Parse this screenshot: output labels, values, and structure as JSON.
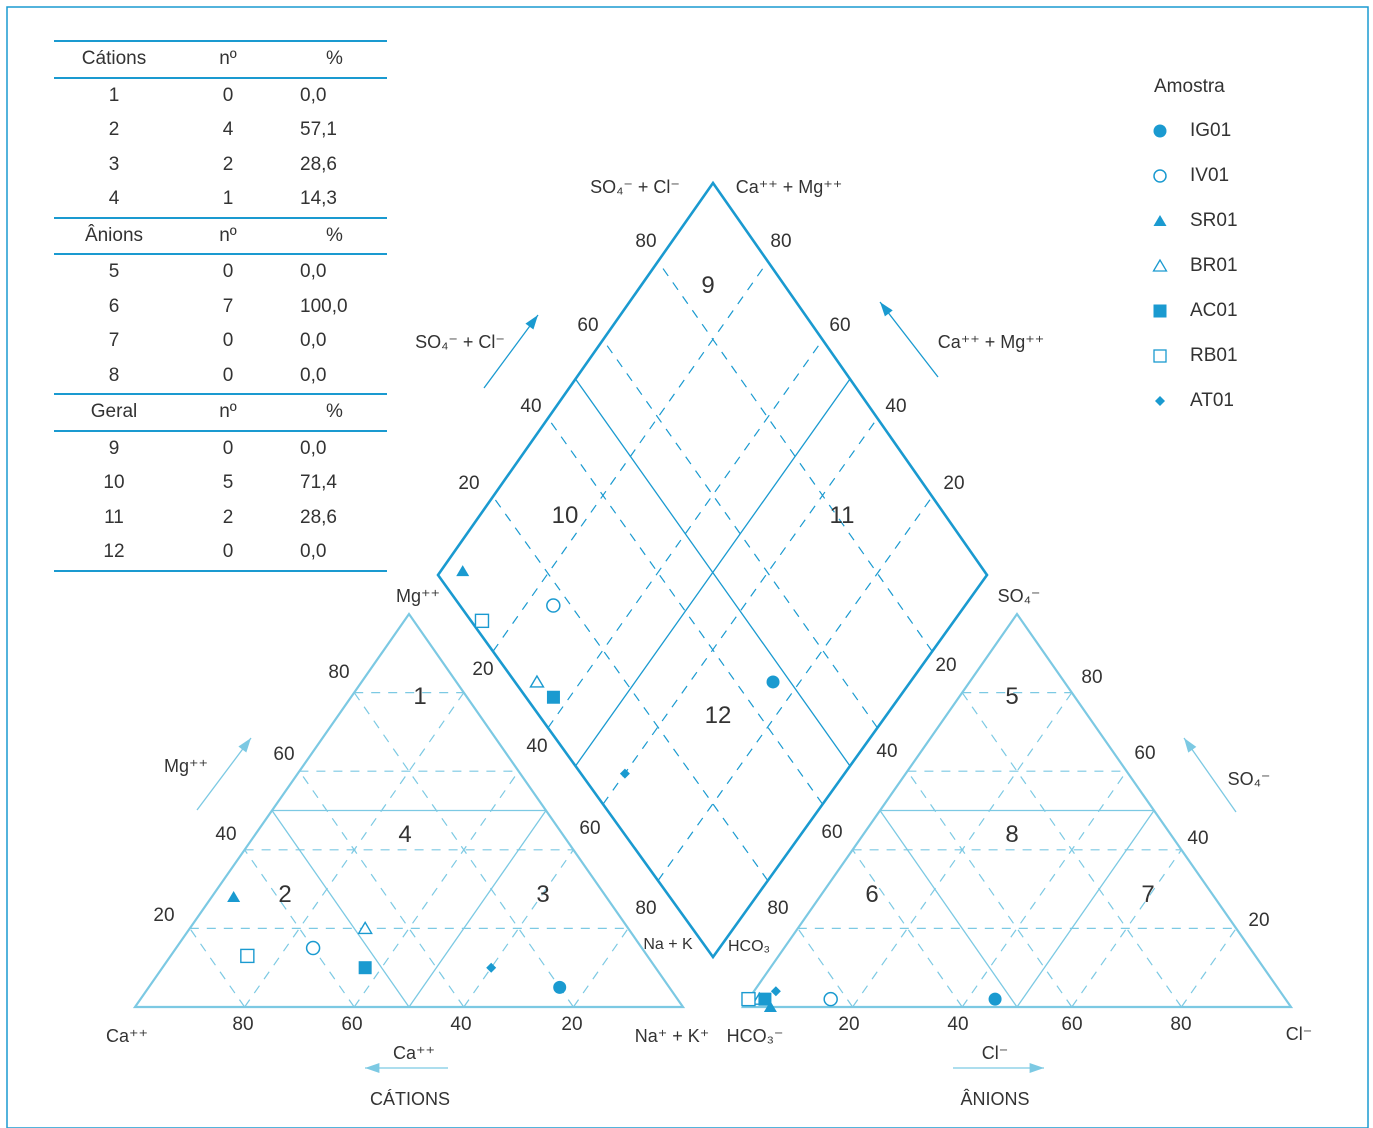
{
  "table": {
    "sections": [
      {
        "header": [
          "Cátions",
          "nº",
          "%"
        ],
        "rows": [
          [
            "1",
            "0",
            "0,0"
          ],
          [
            "2",
            "4",
            "57,1"
          ],
          [
            "3",
            "2",
            "28,6"
          ],
          [
            "4",
            "1",
            "14,3"
          ]
        ]
      },
      {
        "header": [
          "Ânions",
          "nº",
          "%"
        ],
        "rows": [
          [
            "5",
            "0",
            "0,0"
          ],
          [
            "6",
            "7",
            "100,0"
          ],
          [
            "7",
            "0",
            "0,0"
          ],
          [
            "8",
            "0",
            "0,0"
          ]
        ]
      },
      {
        "header": [
          "Geral",
          "nº",
          "%"
        ],
        "rows": [
          [
            "9",
            "0",
            "0,0"
          ],
          [
            "10",
            "5",
            "71,4"
          ],
          [
            "11",
            "2",
            "28,6"
          ],
          [
            "12",
            "0",
            "0,0"
          ]
        ]
      }
    ]
  },
  "legend": {
    "title": "Amostra"
  },
  "colors": {
    "accent": "#1a9ad0",
    "light": "#7cc9e3"
  },
  "chart_data": {
    "type": "scatter",
    "subtype": "piper-diagram",
    "samples": [
      {
        "name": "IG01",
        "marker": "filled-circle",
        "cations": {
          "Ca": 20,
          "Mg": 5
        },
        "anions": {
          "Cl": 45,
          "SO4": 2
        }
      },
      {
        "name": "IV01",
        "marker": "open-circle",
        "cations": {
          "Ca": 60,
          "Mg": 15
        },
        "anions": {
          "Cl": 15,
          "SO4": 2
        }
      },
      {
        "name": "SR01",
        "marker": "filled-triangle",
        "cations": {
          "Ca": 68,
          "Mg": 28
        },
        "anions": {
          "Cl": 5,
          "SO4": 0
        }
      },
      {
        "name": "BR01",
        "marker": "open-triangle",
        "cations": {
          "Ca": 48,
          "Mg": 20
        },
        "anions": {
          "Cl": 2,
          "SO4": 2
        }
      },
      {
        "name": "AC01",
        "marker": "filled-square",
        "cations": {
          "Ca": 53,
          "Mg": 10
        },
        "anions": {
          "Cl": 3,
          "SO4": 2
        }
      },
      {
        "name": "RB01",
        "marker": "open-square",
        "cations": {
          "Ca": 73,
          "Mg": 13
        },
        "anions": {
          "Cl": 0,
          "SO4": 2
        }
      },
      {
        "name": "AT01",
        "marker": "filled-diamond",
        "cations": {
          "Ca": 30,
          "Mg": 10
        },
        "anions": {
          "Cl": 4,
          "SO4": 4
        }
      }
    ],
    "zones": [
      "1",
      "2",
      "3",
      "4",
      "5",
      "6",
      "7",
      "8",
      "9",
      "10",
      "11",
      "12"
    ],
    "ticks": [
      "20",
      "40",
      "60",
      "80"
    ],
    "labels": {
      "mg_vertex": "Mg⁺⁺",
      "ca_vertex": "Ca⁺⁺",
      "nak_vertex": "Na⁺ + K⁺",
      "nak_short": "Na + K",
      "so4_vertex": "SO₄⁻",
      "hco3_vertex": "HCO₃⁻",
      "hco3_short": "HCO₃",
      "cl_vertex": "Cl⁻",
      "mg_arrow": "Mg⁺⁺",
      "ca_arrow": "Ca⁺⁺",
      "cl_arrow": "Cl⁻",
      "so4_arrow": "SO₄⁻",
      "so4cl_top": "SO₄⁻ + Cl⁻",
      "camg_top": "Ca⁺⁺ + Mg⁺⁺",
      "so4cl_arrow": "SO₄⁻ + Cl⁻",
      "camg_arrow": "Ca⁺⁺ + Mg⁺⁺",
      "cations_title": "CÁTIONS",
      "anions_title": "ÂNIONS"
    }
  }
}
